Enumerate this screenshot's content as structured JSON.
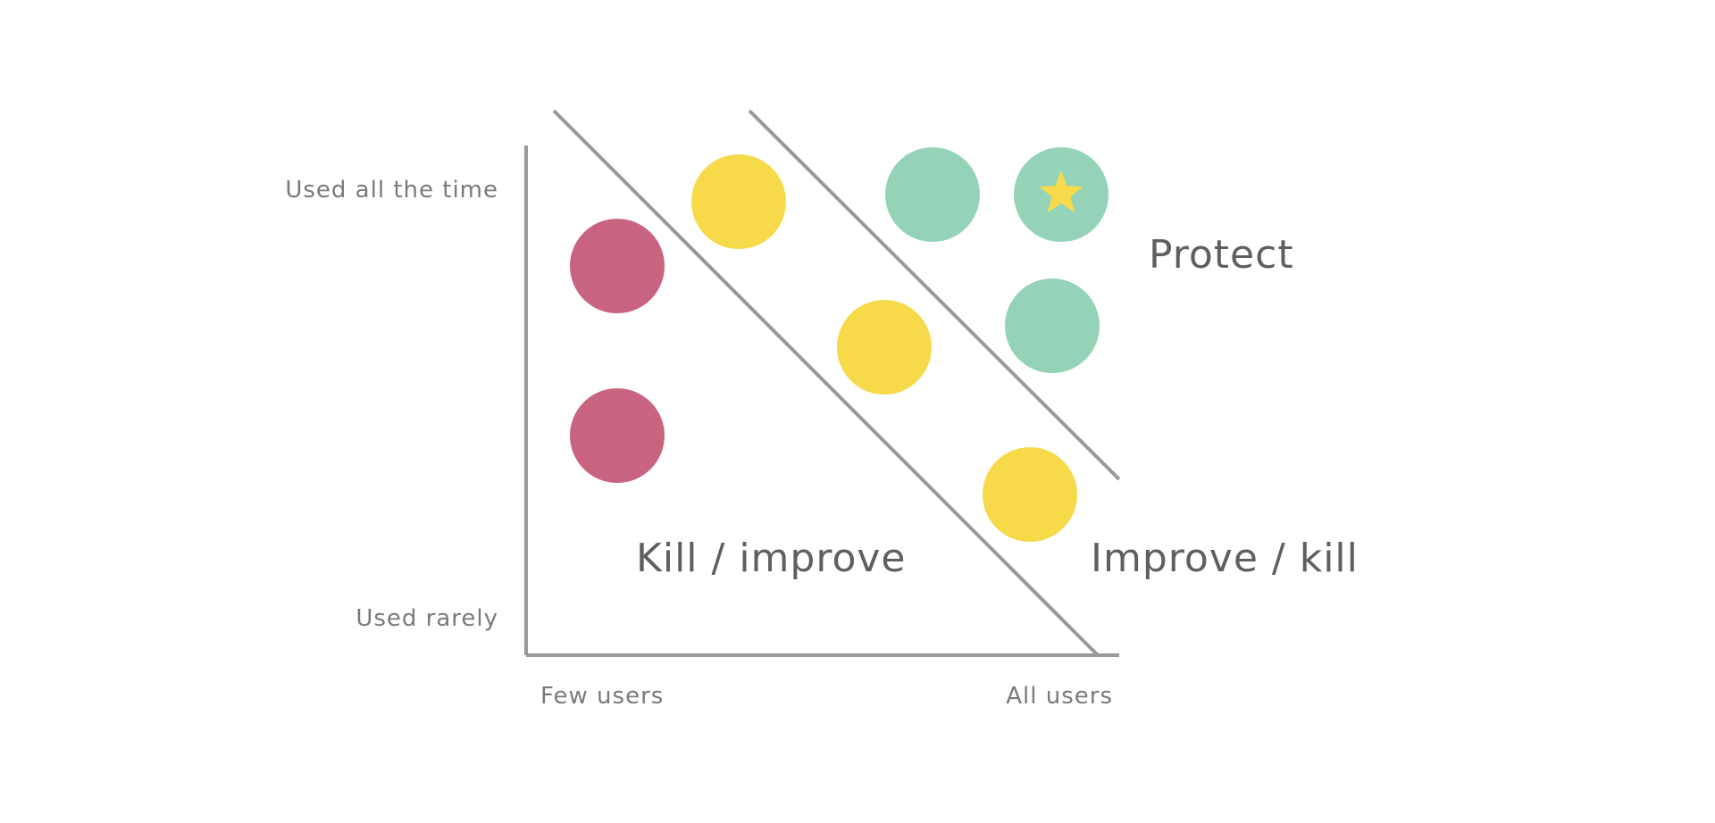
{
  "axes": {
    "y_top_label": "Used all the time",
    "y_bottom_label": "Used rarely",
    "x_left_label": "Few users",
    "x_right_label": "All users"
  },
  "zones": {
    "kill_improve": "Kill / improve",
    "improve_kill": "Improve / kill",
    "protect": "Protect"
  },
  "colors": {
    "red": "#c96480",
    "yellow": "#f6da4a",
    "green": "#94d3b8",
    "line": "#999999",
    "star": "#f6da4a"
  },
  "items": [
    {
      "id": "red-1",
      "zone": "kill-improve",
      "color_key": "red"
    },
    {
      "id": "red-2",
      "zone": "kill-improve",
      "color_key": "red"
    },
    {
      "id": "yellow-1",
      "zone": "improve-kill",
      "color_key": "yellow"
    },
    {
      "id": "yellow-2",
      "zone": "improve-kill",
      "color_key": "yellow"
    },
    {
      "id": "yellow-3",
      "zone": "improve-kill",
      "color_key": "yellow"
    },
    {
      "id": "green-1",
      "zone": "protect",
      "color_key": "green"
    },
    {
      "id": "green-2",
      "zone": "protect",
      "color_key": "green",
      "starred": true
    },
    {
      "id": "green-3",
      "zone": "protect",
      "color_key": "green"
    }
  ]
}
